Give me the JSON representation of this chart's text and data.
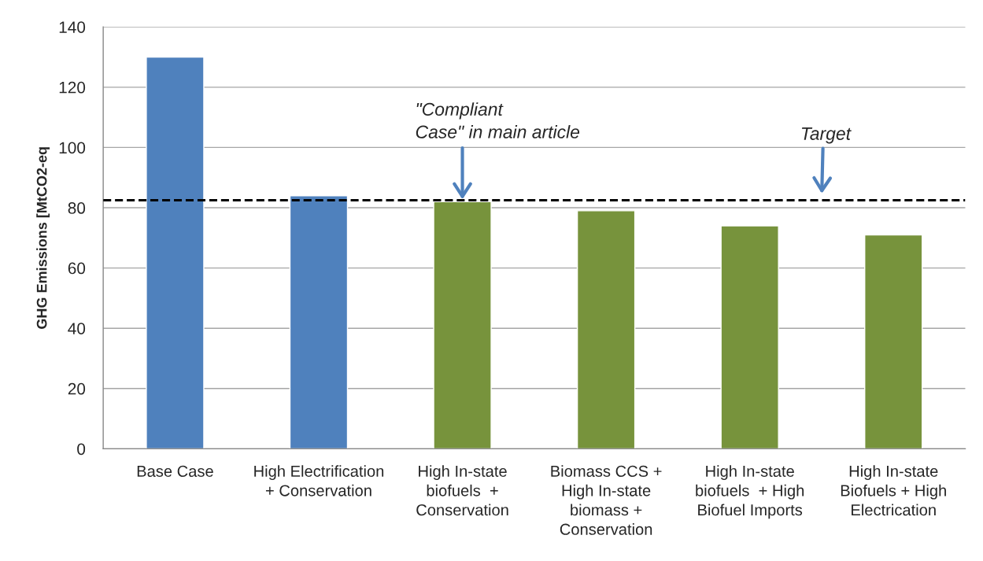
{
  "chart_data": {
    "type": "bar",
    "ylabel": "GHG Emissions [MtCO2-eq",
    "categories": [
      "Base Case",
      "High Electrification\n+ Conservation",
      "High In-state\nbiofuels  +\nConservation",
      "Biomass CCS +\nHigh In-state\nbiomass +\nConservation",
      "High In-state\nbiofuels  + High\nBiofuel Imports",
      "High In-state\nBiofuels + High\nElectrication"
    ],
    "values": [
      130,
      84,
      82,
      79,
      74,
      71
    ],
    "colors": [
      "#4f81bd",
      "#4f81bd",
      "#77933c",
      "#77933c",
      "#77933c",
      "#77933c"
    ],
    "ylim": [
      0,
      140
    ],
    "yticks": [
      0,
      20,
      40,
      60,
      80,
      100,
      120,
      140
    ],
    "grid": "y",
    "ref_lines": [
      {
        "axis": "y",
        "value": 82.5,
        "label": "Target",
        "color": "#000000",
        "line_style": "dashed"
      }
    ],
    "annotations": [
      {
        "text": "\"Compliant\nCase\" in main article",
        "x": "High In-state\nbiofuels  +\nConservation",
        "y": 82
      }
    ]
  }
}
